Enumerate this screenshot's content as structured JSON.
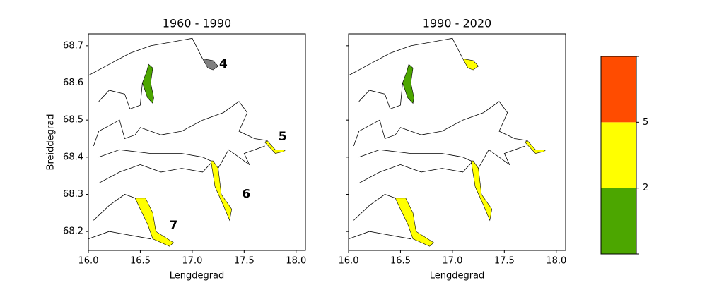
{
  "chart_data": [
    {
      "type": "map",
      "title": "1960 - 1990",
      "x_label": "Lengdegrad",
      "y_label": "Breiddegrad",
      "xlim": [
        16.0,
        18.09
      ],
      "ylim": [
        68.149,
        68.732
      ],
      "xticks": [
        {
          "value": 16.0,
          "label": "16.0"
        },
        {
          "value": 16.5,
          "label": "16.5"
        },
        {
          "value": 17.0,
          "label": "17.0"
        },
        {
          "value": 17.5,
          "label": "17.5"
        },
        {
          "value": 18.0,
          "label": "18.0"
        }
      ],
      "yticks": [
        68.2,
        68.3,
        68.4,
        68.5,
        68.6,
        68.7
      ],
      "show_ytick_labels": true,
      "regions": [
        {
          "color": "#4ca600"
        },
        {
          "label": "4",
          "color": "#808080"
        },
        {
          "label": "5",
          "color": "#ffff00"
        },
        {
          "label": "6",
          "color": "#ffff00"
        },
        {
          "label": "7",
          "color": "#ffff00"
        }
      ]
    },
    {
      "type": "map",
      "title": "1990 - 2020",
      "x_label": "Lengdegrad",
      "xlim": [
        16.0,
        18.09
      ],
      "ylim": [
        68.149,
        68.732
      ],
      "xticks": [
        {
          "value": 16.0,
          "label": "16.0"
        },
        {
          "value": 16.5,
          "label": "16.5"
        },
        {
          "value": 17.0,
          "label": "17.0"
        },
        {
          "value": 17.5,
          "label": "17.5"
        },
        {
          "value": 18.0,
          "label": "18.0"
        }
      ],
      "yticks": [
        68.2,
        68.3,
        68.4,
        68.5,
        68.6,
        68.7
      ],
      "show_ytick_labels": false,
      "regions": [
        {
          "color": "#4ca600"
        },
        {
          "color": "#ffff00"
        },
        {
          "color": "#ffff00"
        },
        {
          "color": "#ffff00"
        },
        {
          "color": "#ffff00"
        }
      ]
    },
    {
      "type": "colorbar",
      "colors": [
        "#4ca600",
        "#ffff00",
        "#ff4c00"
      ],
      "ticks": [
        2,
        5
      ]
    }
  ]
}
